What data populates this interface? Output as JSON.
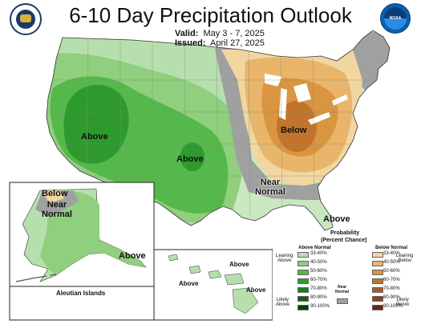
{
  "title": "6-10 Day Precipitation Outlook",
  "valid_label": "Valid:",
  "valid_value": "May 3 - 7, 2025",
  "issued_label": "Issued:",
  "issued_value": "April 27, 2025",
  "map_labels": {
    "west_above": "Above",
    "plains_above": "Above",
    "midwest_below": "Below",
    "near_normal": "Near\nNormal",
    "southeast_above": "Above",
    "alaska_below": "Below",
    "alaska_near_normal": "Near\nNormal",
    "alaska_above": "Above",
    "aleutian": "Aleutian Islands",
    "hawaii_above_1": "Above",
    "hawaii_above_2": "Above",
    "hawaii_above_3": "Above"
  },
  "legend": {
    "title": "Probability",
    "subtitle": "(Percent Chance)",
    "above_header": "Above Normal",
    "below_header": "Below Normal",
    "near_normal": "Near\nNormal",
    "leaning_above": "Leaning\nAbove",
    "likely_above": "Likely\nAbove",
    "leaning_below": "Leaning\nBelow",
    "likely_below": "Likely\nBelow",
    "ranges": [
      "33-40%",
      "40-50%",
      "50-60%",
      "60-70%",
      "70-80%",
      "80-90%",
      "90-100%"
    ],
    "above_colors": [
      "#b7dfae",
      "#8fcf7d",
      "#55b84a",
      "#2e9a2e",
      "#1e7a1e",
      "#145c14",
      "#0a3d0a"
    ],
    "below_colors": [
      "#f2d6a0",
      "#e8b56a",
      "#d9953f",
      "#c2742c",
      "#a85a24",
      "#8a421c",
      "#5e2a12"
    ],
    "near_normal_color": "#a0a0a0"
  }
}
